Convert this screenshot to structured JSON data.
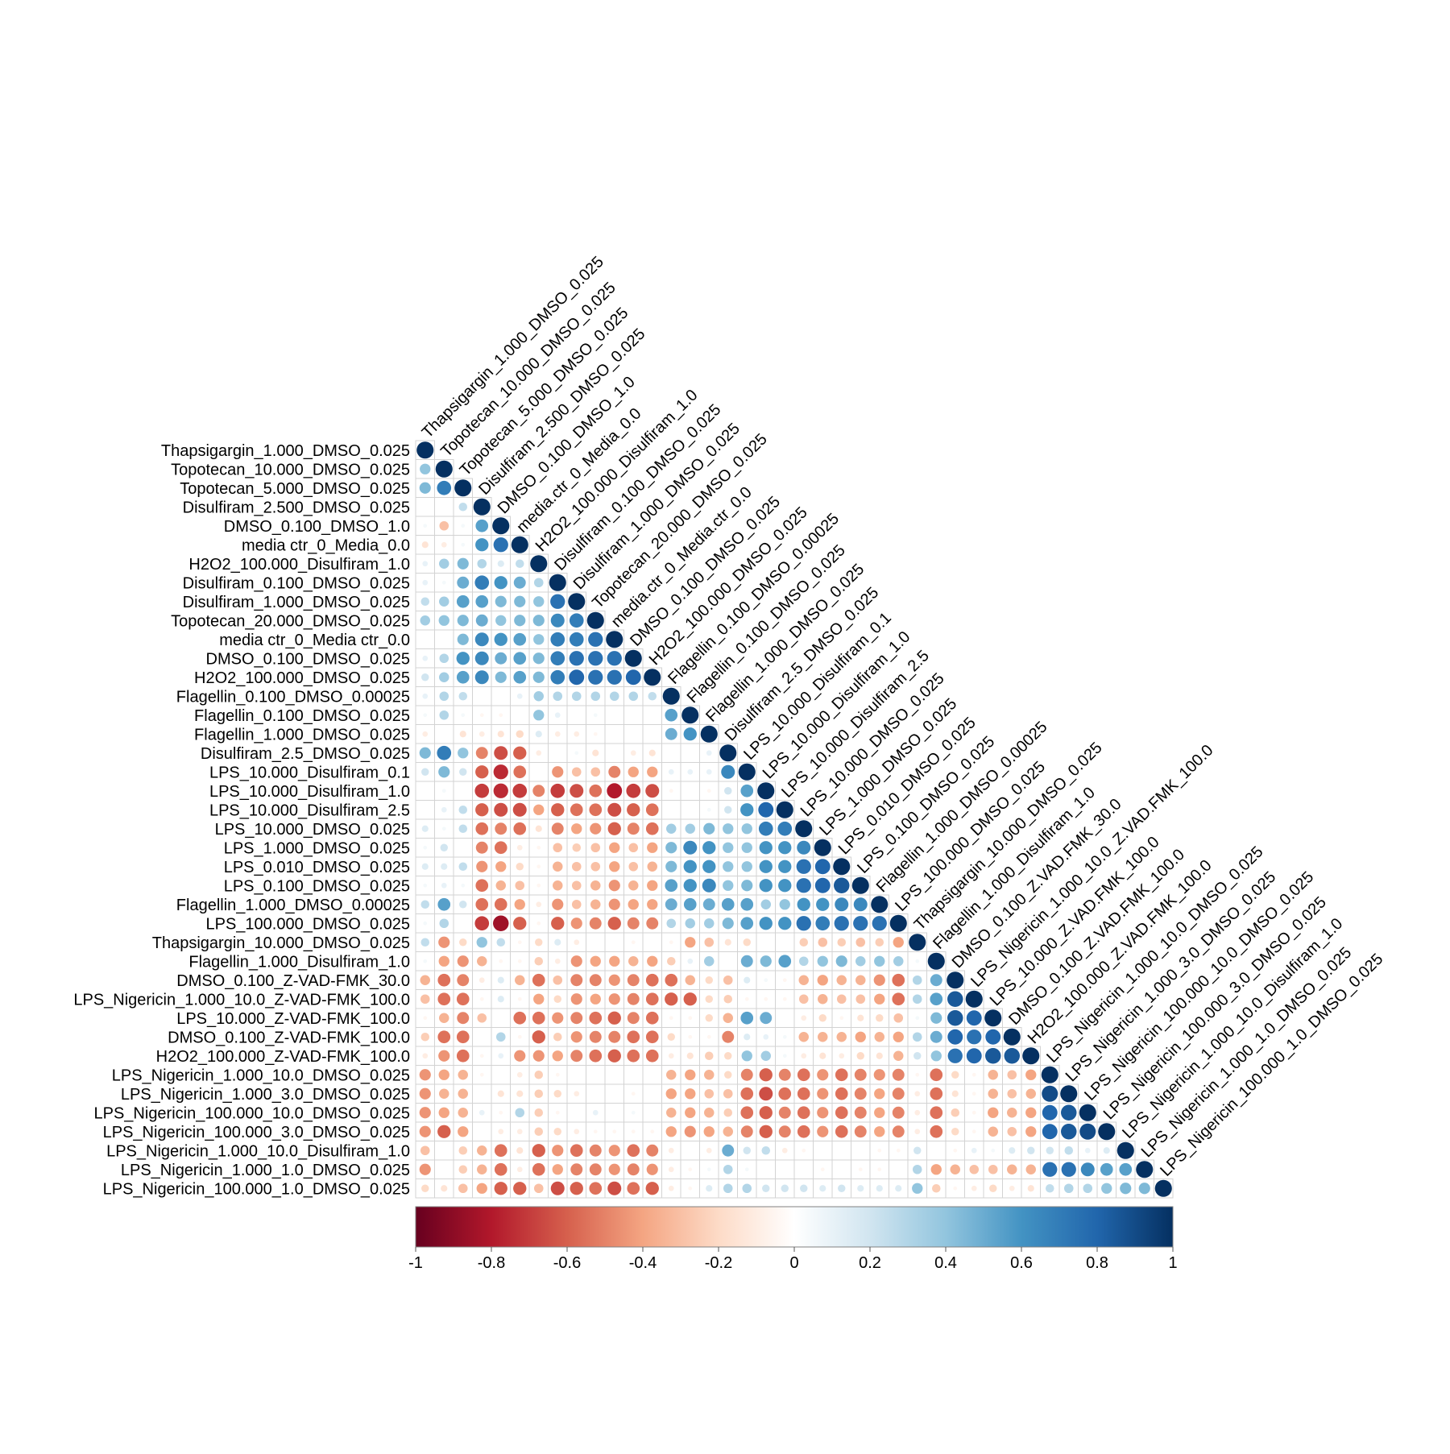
{
  "chart_data": {
    "type": "heatmap",
    "subtype": "correlation-lower-triangle-circles",
    "labels": [
      "Thapsigargin_1.000_DMSO_0.025",
      "Topotecan_10.000_DMSO_0.025",
      "Topotecan_5.000_DMSO_0.025",
      "Disulfiram_2.500_DMSO_0.025",
      "DMSO_0.100_DMSO_1.0",
      "media ctr_0_Media_0.0",
      "H2O2_100.000_Disulfiram_1.0",
      "Disulfiram_0.100_DMSO_0.025",
      "Disulfiram_1.000_DMSO_0.025",
      "Topotecan_20.000_DMSO_0.025",
      "media ctr_0_Media ctr_0.0",
      "DMSO_0.100_DMSO_0.025",
      "H2O2_100.000_DMSO_0.025",
      "Flagellin_0.100_DMSO_0.00025",
      "Flagellin_0.100_DMSO_0.025",
      "Flagellin_1.000_DMSO_0.025",
      "Disulfiram_2.5_DMSO_0.025",
      "LPS_10.000_Disulfiram_0.1",
      "LPS_10.000_Disulfiram_1.0",
      "LPS_10.000_Disulfiram_2.5",
      "LPS_10.000_DMSO_0.025",
      "LPS_1.000_DMSO_0.025",
      "LPS_0.010_DMSO_0.025",
      "LPS_0.100_DMSO_0.025",
      "Flagellin_1.000_DMSO_0.00025",
      "LPS_100.000_DMSO_0.025",
      "Thapsigargin_10.000_DMSO_0.025",
      "Flagellin_1.000_Disulfiram_1.0",
      "DMSO_0.100_Z-VAD-FMK_30.0",
      "LPS_Nigericin_1.000_10.0_Z-VAD-FMK_100.0",
      "LPS_10.000_Z-VAD-FMK_100.0",
      "DMSO_0.100_Z-VAD-FMK_100.0",
      "H2O2_100.000_Z-VAD-FMK_100.0",
      "LPS_Nigericin_1.000_10.0_DMSO_0.025",
      "LPS_Nigericin_1.000_3.0_DMSO_0.025",
      "LPS_Nigericin_100.000_10.0_DMSO_0.025",
      "LPS_Nigericin_100.000_3.0_DMSO_0.025",
      "LPS_Nigericin_1.000_10.0_Disulfiram_1.0",
      "LPS_Nigericin_1.000_1.0_DMSO_0.025",
      "LPS_Nigericin_100.000_1.0_DMSO_0.025"
    ],
    "top_labels": [
      "Thapsigargin_1.000_DMSO_0.025",
      "Topotecan_10.000_DMSO_0.025",
      "Topotecan_5.000_DMSO_0.025",
      "Disulfiram_2.500_DMSO_0.025",
      "DMSO_0.100_DMSO_1.0",
      "media.ctr_0_Media_0.0",
      "H2O2_100.000_Disulfiram_1.0",
      "Disulfiram_0.100_DMSO_0.025",
      "Disulfiram_1.000_DMSO_0.025",
      "Topotecan_20.000_DMSO_0.025",
      "media.ctr_0_Media.ctr_0.0",
      "DMSO_0.100_DMSO_0.025",
      "H2O2_100.000_DMSO_0.025",
      "Flagellin_0.100_DMSO_0.00025",
      "Flagellin_0.100_DMSO_0.025",
      "Flagellin_1.000_DMSO_0.025",
      "Disulfiram_2.5_DMSO_0.025",
      "LPS_10.000_Disulfiram_0.1",
      "LPS_10.000_Disulfiram_1.0",
      "LPS_10.000_Disulfiram_2.5",
      "LPS_10.000_DMSO_0.025",
      "LPS_1.000_DMSO_0.025",
      "LPS_0.010_DMSO_0.025",
      "LPS_0.100_DMSO_0.025",
      "Flagellin_1.000_DMSO_0.00025",
      "LPS_100.000_DMSO_0.025",
      "Thapsigargin_10.000_DMSO_0.025",
      "Flagellin_1.000_Disulfiram_1.0",
      "DMSO_0.100_Z.VAD.FMK_30.0",
      "LPS_Nigericin_1.000_10.0_Z.VAD.FMK_100.0",
      "LPS_10.000_Z.VAD.FMK_100.0",
      "DMSO_0.100_Z.VAD.FMK_100.0",
      "H2O2_100.000_Z.VAD.FMK_100.0",
      "LPS_Nigericin_1.000_10.0_DMSO_0.025",
      "LPS_Nigericin_1.000_3.0_DMSO_0.025",
      "LPS_Nigericin_100.000_10.0_DMSO_0.025",
      "LPS_Nigericin_100.000_3.0_DMSO_0.025",
      "LPS_Nigericin_1.000_10.0_Disulfiram_1.0",
      "LPS_Nigericin_1.000_1.0_DMSO_0.025",
      "LPS_Nigericin_100.000_1.0_DMSO_0.025"
    ],
    "matrix": [
      [
        1.0
      ],
      [
        0.4,
        1.0
      ],
      [
        0.45,
        0.7,
        1.0
      ],
      [
        0.0,
        0.0,
        0.25,
        1.0
      ],
      [
        0.05,
        -0.3,
        0.05,
        0.55,
        1.0
      ],
      [
        -0.15,
        -0.1,
        0.05,
        0.6,
        0.75,
        1.0
      ],
      [
        0.1,
        0.35,
        0.45,
        0.3,
        0.15,
        0.25,
        1.0
      ],
      [
        0.1,
        0.05,
        0.5,
        0.7,
        0.6,
        0.5,
        0.3,
        1.0
      ],
      [
        0.25,
        0.35,
        0.55,
        0.55,
        0.45,
        0.45,
        0.4,
        0.75,
        1.0
      ],
      [
        0.35,
        0.4,
        0.45,
        0.5,
        0.4,
        0.45,
        0.45,
        0.65,
        0.7,
        1.0
      ],
      [
        0.0,
        0.0,
        0.45,
        0.65,
        0.6,
        0.55,
        0.4,
        0.7,
        0.7,
        0.75,
        1.0
      ],
      [
        0.1,
        0.3,
        0.6,
        0.65,
        0.5,
        0.55,
        0.45,
        0.7,
        0.75,
        0.75,
        0.75,
        1.0
      ],
      [
        0.2,
        0.35,
        0.55,
        0.65,
        0.45,
        0.55,
        0.45,
        0.7,
        0.8,
        0.75,
        0.75,
        0.8,
        1.0
      ],
      [
        0.1,
        0.3,
        0.25,
        0.0,
        0.0,
        0.1,
        0.35,
        0.3,
        0.3,
        0.3,
        0.3,
        0.3,
        0.25,
        1.0
      ],
      [
        0.05,
        0.3,
        0.05,
        -0.05,
        -0.05,
        0.0,
        0.4,
        0.1,
        0.0,
        0.05,
        0.0,
        0.0,
        0.0,
        0.55,
        1.0
      ],
      [
        -0.1,
        0.0,
        -0.15,
        -0.1,
        -0.15,
        -0.2,
        0.15,
        -0.1,
        -0.1,
        -0.05,
        0.0,
        0.0,
        0.0,
        0.5,
        0.6,
        1.0
      ],
      [
        0.45,
        0.7,
        0.4,
        -0.5,
        -0.65,
        -0.6,
        -0.1,
        0.0,
        0.05,
        -0.15,
        0.0,
        -0.1,
        -0.15,
        0.0,
        0.0,
        0.1,
        1.0
      ],
      [
        0.2,
        0.45,
        0.2,
        -0.6,
        -0.75,
        -0.55,
        0.0,
        -0.45,
        -0.3,
        -0.3,
        -0.5,
        -0.4,
        -0.4,
        0.1,
        0.1,
        0.1,
        0.65,
        1.0
      ],
      [
        0.0,
        0.05,
        0.0,
        -0.7,
        -0.75,
        -0.7,
        -0.5,
        -0.7,
        -0.65,
        -0.55,
        -0.8,
        -0.7,
        -0.65,
        -0.05,
        0.0,
        -0.05,
        0.2,
        0.55,
        1.0
      ],
      [
        0.0,
        0.1,
        0.25,
        -0.6,
        -0.65,
        -0.65,
        -0.4,
        -0.6,
        -0.55,
        -0.55,
        -0.65,
        -0.6,
        -0.55,
        0.0,
        0.0,
        0.05,
        0.2,
        0.6,
        0.8,
        1.0
      ],
      [
        0.15,
        0.05,
        0.25,
        -0.55,
        -0.5,
        -0.55,
        -0.15,
        -0.5,
        -0.4,
        -0.45,
        -0.6,
        -0.5,
        -0.55,
        0.35,
        0.35,
        0.45,
        0.4,
        0.4,
        0.7,
        0.7,
        1.0
      ],
      [
        0.05,
        0.2,
        0.0,
        -0.5,
        -0.55,
        -0.1,
        -0.05,
        -0.3,
        -0.25,
        -0.3,
        -0.4,
        -0.3,
        -0.4,
        0.45,
        0.65,
        0.6,
        0.4,
        0.4,
        0.6,
        0.6,
        0.65,
        1.0
      ],
      [
        0.15,
        0.15,
        0.25,
        -0.45,
        -0.4,
        -0.2,
        -0.05,
        -0.35,
        -0.3,
        -0.3,
        -0.4,
        -0.3,
        -0.35,
        0.45,
        0.6,
        0.6,
        0.4,
        0.4,
        0.6,
        0.6,
        0.75,
        0.8,
        1.0
      ],
      [
        0.05,
        0.1,
        0.05,
        -0.55,
        -0.35,
        -0.3,
        -0.05,
        -0.35,
        -0.3,
        -0.35,
        -0.45,
        -0.35,
        -0.4,
        0.55,
        0.6,
        0.65,
        0.4,
        0.45,
        0.6,
        0.6,
        0.75,
        0.8,
        0.85,
        1.0
      ],
      [
        0.25,
        0.55,
        0.2,
        -0.55,
        -0.55,
        -0.4,
        -0.1,
        -0.45,
        -0.3,
        -0.35,
        -0.45,
        -0.4,
        -0.4,
        0.5,
        0.55,
        0.5,
        0.55,
        0.55,
        0.35,
        0.4,
        0.6,
        0.6,
        0.65,
        0.65,
        1.0
      ],
      [
        0.05,
        0.3,
        0.0,
        -0.7,
        -0.85,
        -0.6,
        -0.05,
        -0.6,
        -0.45,
        -0.5,
        -0.6,
        -0.5,
        -0.5,
        0.3,
        0.35,
        0.35,
        0.45,
        0.55,
        0.6,
        0.6,
        0.75,
        0.7,
        0.75,
        0.75,
        0.75,
        1.0
      ],
      [
        0.25,
        -0.45,
        -0.2,
        0.4,
        0.25,
        -0.05,
        -0.2,
        0.15,
        -0.1,
        0.0,
        0.0,
        -0.05,
        0.0,
        -0.05,
        -0.4,
        -0.3,
        -0.15,
        -0.2,
        0.0,
        0.0,
        -0.25,
        -0.3,
        -0.25,
        -0.3,
        -0.25,
        -0.4,
        1.0
      ],
      [
        0.05,
        -0.4,
        -0.45,
        -0.35,
        -0.05,
        -0.05,
        -0.25,
        -0.1,
        -0.45,
        -0.4,
        -0.4,
        -0.35,
        -0.4,
        -0.25,
        0.1,
        0.35,
        0.0,
        0.5,
        0.45,
        0.55,
        0.3,
        0.4,
        0.45,
        0.35,
        0.4,
        0.35,
        0.05,
        1.0
      ],
      [
        -0.35,
        -0.55,
        -0.5,
        -0.1,
        0.15,
        -0.35,
        -0.55,
        -0.3,
        -0.5,
        -0.5,
        -0.45,
        -0.5,
        -0.55,
        -0.55,
        -0.35,
        -0.2,
        -0.3,
        0.15,
        0.05,
        -0.05,
        -0.35,
        -0.4,
        -0.35,
        -0.35,
        -0.45,
        -0.55,
        0.3,
        0.5,
        1.0
      ],
      [
        -0.3,
        -0.55,
        -0.55,
        -0.05,
        0.15,
        -0.05,
        -0.4,
        -0.2,
        -0.45,
        -0.4,
        -0.45,
        -0.5,
        -0.55,
        -0.6,
        -0.6,
        -0.2,
        -0.25,
        -0.05,
        -0.05,
        -0.05,
        -0.3,
        -0.35,
        -0.3,
        -0.3,
        -0.4,
        -0.55,
        0.3,
        0.55,
        0.85,
        1.0
      ],
      [
        -0.05,
        -0.35,
        -0.5,
        -0.3,
        0.0,
        -0.55,
        -0.55,
        -0.45,
        -0.5,
        -0.55,
        -0.6,
        -0.5,
        -0.55,
        -0.05,
        -0.05,
        -0.2,
        -0.35,
        0.55,
        0.5,
        0.0,
        -0.1,
        -0.2,
        -0.05,
        -0.15,
        -0.2,
        -0.3,
        0.05,
        0.45,
        0.85,
        0.8,
        1.0
      ],
      [
        -0.25,
        -0.55,
        -0.55,
        0.0,
        0.3,
        -0.05,
        -0.6,
        -0.25,
        -0.45,
        -0.5,
        -0.5,
        -0.55,
        -0.55,
        -0.2,
        -0.05,
        -0.05,
        -0.5,
        0.15,
        0.1,
        0.05,
        -0.35,
        -0.35,
        -0.35,
        -0.4,
        -0.35,
        -0.4,
        0.3,
        0.5,
        0.8,
        0.75,
        0.8,
        1.0
      ],
      [
        -0.1,
        -0.45,
        -0.55,
        -0.05,
        0.1,
        -0.45,
        -0.45,
        -0.4,
        -0.5,
        -0.55,
        -0.6,
        -0.55,
        -0.55,
        -0.1,
        -0.15,
        -0.25,
        -0.2,
        0.4,
        0.35,
        0.05,
        -0.1,
        -0.15,
        -0.1,
        -0.2,
        -0.15,
        -0.35,
        0.2,
        0.4,
        0.75,
        0.8,
        0.85,
        0.85,
        1.0
      ],
      [
        -0.45,
        -0.4,
        -0.35,
        -0.05,
        0.0,
        -0.1,
        -0.25,
        -0.05,
        0.0,
        0.0,
        0.0,
        0.0,
        0.0,
        -0.35,
        -0.4,
        -0.35,
        -0.2,
        -0.5,
        -0.6,
        -0.5,
        -0.55,
        -0.45,
        -0.55,
        -0.5,
        -0.45,
        -0.5,
        -0.05,
        -0.55,
        -0.2,
        -0.05,
        -0.35,
        -0.3,
        -0.4,
        1.0
      ],
      [
        -0.45,
        -0.35,
        -0.35,
        0.0,
        -0.15,
        -0.15,
        -0.25,
        -0.2,
        -0.1,
        0.0,
        0.0,
        -0.05,
        0.0,
        -0.4,
        -0.4,
        -0.3,
        -0.3,
        -0.55,
        -0.65,
        -0.55,
        -0.55,
        -0.45,
        -0.55,
        -0.5,
        -0.4,
        -0.5,
        -0.1,
        -0.55,
        -0.15,
        -0.05,
        -0.35,
        -0.3,
        -0.35,
        0.9,
        1.0
      ],
      [
        -0.45,
        -0.4,
        -0.35,
        0.1,
        -0.05,
        0.3,
        -0.25,
        -0.05,
        0.0,
        0.1,
        0.0,
        0.05,
        0.0,
        -0.35,
        -0.4,
        -0.35,
        -0.25,
        -0.55,
        -0.6,
        -0.5,
        -0.55,
        -0.45,
        -0.55,
        -0.5,
        -0.4,
        -0.5,
        -0.1,
        -0.55,
        -0.25,
        -0.05,
        -0.4,
        -0.35,
        -0.4,
        0.8,
        0.85,
        1.0
      ],
      [
        -0.45,
        -0.6,
        -0.4,
        0.0,
        -0.1,
        -0.1,
        -0.25,
        -0.2,
        -0.1,
        -0.05,
        -0.05,
        -0.05,
        -0.05,
        -0.4,
        -0.45,
        -0.4,
        -0.35,
        -0.5,
        -0.6,
        -0.5,
        -0.55,
        -0.45,
        -0.55,
        -0.5,
        -0.4,
        -0.5,
        -0.1,
        -0.55,
        -0.2,
        -0.05,
        -0.35,
        -0.3,
        -0.4,
        0.8,
        0.85,
        0.9,
        1.0
      ],
      [
        -0.3,
        0.0,
        -0.25,
        -0.35,
        -0.55,
        -0.15,
        -0.6,
        -0.45,
        -0.55,
        -0.5,
        -0.45,
        -0.55,
        -0.5,
        -0.1,
        0.0,
        -0.1,
        0.5,
        0.2,
        0.25,
        -0.1,
        -0.05,
        0.0,
        0.0,
        0.0,
        -0.05,
        -0.05,
        0.2,
        0.0,
        -0.05,
        0.1,
        0.05,
        0.15,
        0.2,
        0.2,
        0.25,
        0.1,
        0.15,
        1.0
      ],
      [
        -0.45,
        0.0,
        -0.25,
        -0.35,
        -0.55,
        -0.1,
        -0.55,
        -0.4,
        -0.5,
        -0.5,
        -0.45,
        -0.5,
        -0.45,
        -0.1,
        -0.05,
        0.05,
        0.3,
        0.05,
        0.0,
        0.0,
        0.0,
        -0.05,
        0.0,
        -0.05,
        -0.05,
        0.0,
        0.3,
        -0.4,
        -0.35,
        -0.3,
        -0.3,
        -0.35,
        -0.35,
        0.75,
        0.75,
        0.65,
        0.55,
        0.55,
        1.0
      ],
      [
        -0.2,
        -0.15,
        -0.3,
        -0.4,
        -0.6,
        -0.6,
        -0.3,
        -0.65,
        -0.6,
        -0.55,
        -0.65,
        -0.55,
        -0.6,
        -0.1,
        -0.05,
        0.15,
        0.3,
        0.3,
        0.2,
        0.2,
        0.2,
        0.15,
        0.2,
        0.15,
        0.15,
        0.15,
        0.4,
        -0.25,
        -0.05,
        -0.1,
        -0.2,
        -0.1,
        -0.15,
        0.25,
        0.3,
        0.3,
        0.4,
        0.45,
        0.45,
        1.0
      ]
    ],
    "legend_ticks": [
      "-1",
      "-0.8",
      "-0.6",
      "-0.4",
      "-0.2",
      "0",
      "0.2",
      "0.4",
      "0.6",
      "0.8",
      "1"
    ],
    "legend_range": [
      -1,
      1
    ],
    "legend_placement": "bottom",
    "grid": true,
    "colors": {
      "stops": [
        "#67001f",
        "#b2182b",
        "#d6604d",
        "#f4a582",
        "#fddbc7",
        "#ffffff",
        "#d1e5f0",
        "#92c5de",
        "#4393c3",
        "#2166ac",
        "#053061"
      ],
      "grid": "#d3d3d3"
    }
  }
}
